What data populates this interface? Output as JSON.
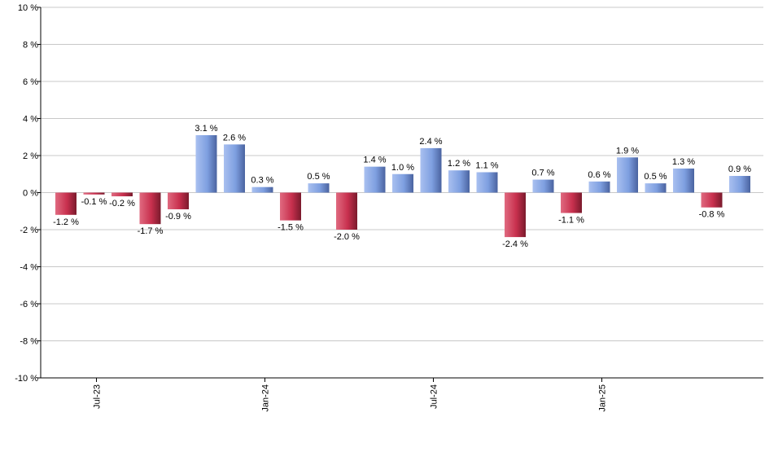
{
  "chart_data": {
    "type": "bar",
    "title": "",
    "xlabel": "",
    "ylabel": "",
    "ylim": [
      -10,
      10
    ],
    "y_ticks": [
      10,
      8,
      6,
      4,
      2,
      0,
      -2,
      -4,
      -6,
      -8,
      -10
    ],
    "y_tick_labels": [
      "10 %",
      "8 %",
      "6 %",
      "4 %",
      "2 %",
      "0 %",
      "-2 %",
      "-4 %",
      "-6 %",
      "-8 %",
      "-10 %"
    ],
    "x_tick_labels": [
      {
        "label": "Jul-23",
        "index": 1
      },
      {
        "label": "Jan-24",
        "index": 7
      },
      {
        "label": "Jul-24",
        "index": 13
      },
      {
        "label": "Jan-25",
        "index": 19
      }
    ],
    "grid": true,
    "legend": "none",
    "colors": {
      "positive": "#7e9fe0",
      "negative": "#c8304e",
      "gridline": "#c8c8c8",
      "axis": "#000000"
    },
    "values": [
      -1.2,
      -0.1,
      -0.2,
      -1.7,
      -0.9,
      3.1,
      2.6,
      0.3,
      -1.5,
      0.5,
      -2.0,
      1.4,
      1.0,
      2.4,
      1.2,
      1.1,
      -2.4,
      0.7,
      -1.1,
      0.6,
      1.9,
      0.5,
      1.3,
      -0.8,
      0.9
    ],
    "data_labels": [
      "-1.2 %",
      "-0.1 %",
      "-0.2 %",
      "-1.7 %",
      "-0.9 %",
      "3.1 %",
      "2.6 %",
      "0.3 %",
      "-1.5 %",
      "0.5 %",
      "-2.0 %",
      "1.4 %",
      "1.0 %",
      "2.4 %",
      "1.2 %",
      "1.1 %",
      "-2.4 %",
      "0.7 %",
      "-1.1 %",
      "0.6 %",
      "1.9 %",
      "0.5 %",
      "1.3 %",
      "-0.8 %",
      "0.9 %"
    ]
  }
}
